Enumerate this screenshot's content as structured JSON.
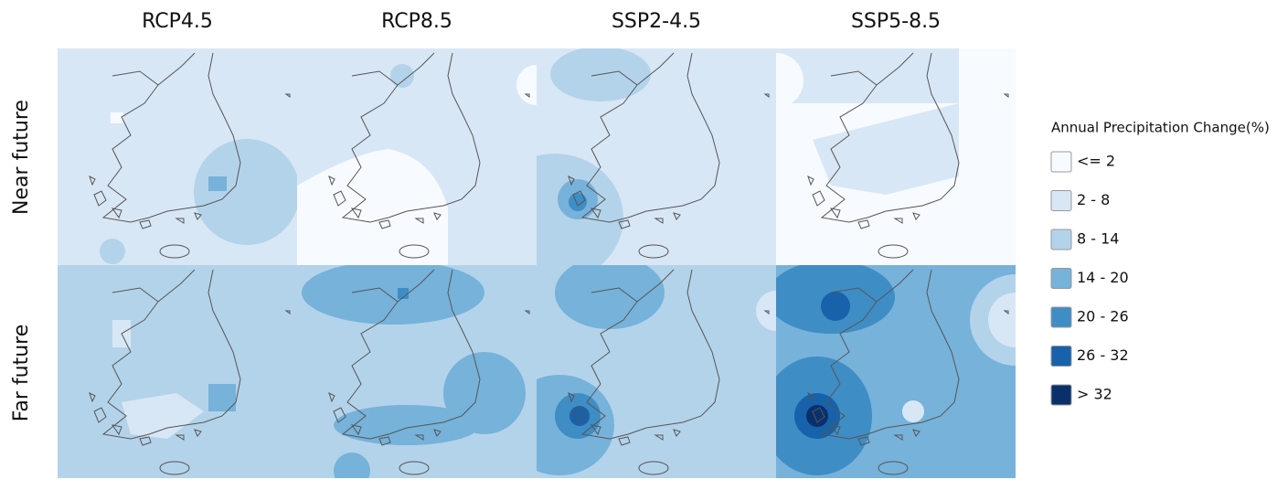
{
  "columns": [
    "RCP4.5",
    "RCP8.5",
    "SSP2-4.5",
    "SSP5-8.5"
  ],
  "rows": [
    "Near future",
    "Far future"
  ],
  "legend": {
    "title": "Annual Precipitation Change(%)",
    "items": [
      {
        "label": "<= 2",
        "color": "#f7fbff"
      },
      {
        "label": "2 - 8",
        "color": "#d8e7f5"
      },
      {
        "label": "8 - 14",
        "color": "#b3d3ea"
      },
      {
        "label": "14 - 20",
        "color": "#76b2da"
      },
      {
        "label": "20 - 26",
        "color": "#3f8dc5"
      },
      {
        "label": "26 - 32",
        "color": "#1762ab"
      },
      {
        "label": "> 32",
        "color": "#0a306b"
      }
    ]
  }
}
